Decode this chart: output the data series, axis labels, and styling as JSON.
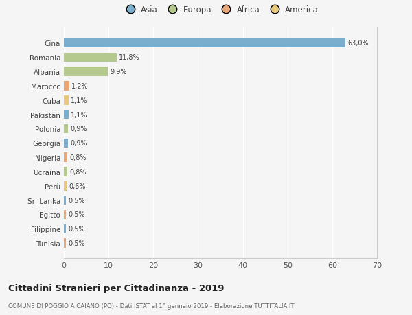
{
  "countries": [
    "Cina",
    "Romania",
    "Albania",
    "Marocco",
    "Cuba",
    "Pakistan",
    "Polonia",
    "Georgia",
    "Nigeria",
    "Ucraina",
    "Perù",
    "Sri Lanka",
    "Egitto",
    "Filippine",
    "Tunisia"
  ],
  "values": [
    63.0,
    11.8,
    9.9,
    1.2,
    1.1,
    1.1,
    0.9,
    0.9,
    0.8,
    0.8,
    0.6,
    0.5,
    0.5,
    0.5,
    0.5
  ],
  "labels": [
    "63,0%",
    "11,8%",
    "9,9%",
    "1,2%",
    "1,1%",
    "1,1%",
    "0,9%",
    "0,9%",
    "0,8%",
    "0,8%",
    "0,6%",
    "0,5%",
    "0,5%",
    "0,5%",
    "0,5%"
  ],
  "colors": [
    "#7aaecc",
    "#b5c98e",
    "#b5c98e",
    "#e8a87c",
    "#e8c87c",
    "#7aaecc",
    "#b5c98e",
    "#7aaecc",
    "#e8a87c",
    "#b5c98e",
    "#e8c87c",
    "#7aaecc",
    "#e8a87c",
    "#7aaecc",
    "#e8a87c"
  ],
  "legend_labels": [
    "Asia",
    "Europa",
    "Africa",
    "America"
  ],
  "legend_colors": [
    "#7aaecc",
    "#b5c98e",
    "#e8a87c",
    "#e8c87c"
  ],
  "title": "Cittadini Stranieri per Cittadinanza - 2019",
  "subtitle": "COMUNE DI POGGIO A CAIANO (PO) - Dati ISTAT al 1° gennaio 2019 - Elaborazione TUTTITALIA.IT",
  "xlim": [
    0,
    70
  ],
  "xticks": [
    0,
    10,
    20,
    30,
    40,
    50,
    60,
    70
  ],
  "background_color": "#f5f5f5",
  "grid_color": "#ffffff",
  "bar_height": 0.65
}
